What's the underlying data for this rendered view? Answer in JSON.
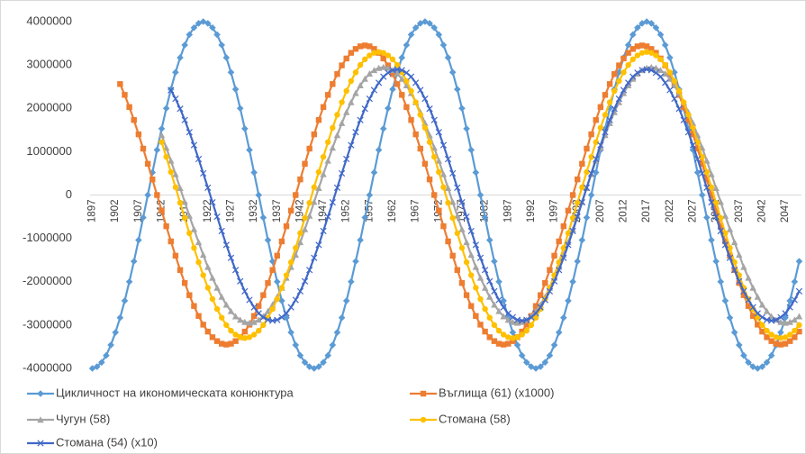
{
  "chart_data": {
    "type": "line",
    "categories": [
      "1897",
      null,
      null,
      null,
      null,
      "1902",
      null,
      null,
      null,
      null,
      "1907",
      null,
      null,
      null,
      null,
      "1912",
      null,
      null,
      null,
      null,
      "1917",
      null,
      null,
      null,
      null,
      "1922",
      null,
      null,
      null,
      null,
      "1927",
      null,
      null,
      null,
      null,
      "1932",
      null,
      null,
      null,
      null,
      "1937",
      null,
      null,
      null,
      null,
      "1942",
      null,
      null,
      null,
      null,
      "1947",
      null,
      null,
      null,
      null,
      "1952",
      null,
      null,
      null,
      null,
      "1957",
      null,
      null,
      null,
      null,
      "1962",
      null,
      null,
      null,
      null,
      "1967",
      null,
      null,
      null,
      null,
      "1972",
      null,
      null,
      null,
      null,
      "1977",
      null,
      null,
      null,
      null,
      "1982",
      null,
      null,
      null,
      null,
      "1987",
      null,
      null,
      null,
      null,
      "1992",
      null,
      null,
      null,
      null,
      "1997",
      null,
      null,
      null,
      null,
      "2002",
      null,
      null,
      null,
      null,
      "2007",
      null,
      null,
      null,
      null,
      "2012",
      null,
      null,
      null,
      null,
      "2017",
      null,
      null,
      null,
      null,
      "2022",
      null,
      null,
      null,
      null,
      "2027",
      null,
      null,
      null,
      null,
      "2032",
      null,
      null,
      null,
      null,
      "2037",
      null,
      null,
      null,
      null,
      "2042",
      null,
      null,
      null,
      null,
      "2047",
      null,
      null,
      null
    ],
    "ylim": [
      -4000000,
      4000000
    ],
    "yticks": [
      -4000000,
      -3000000,
      -2000000,
      -1000000,
      0,
      1000000,
      2000000,
      3000000,
      4000000
    ],
    "grid": false,
    "legend": "bottom",
    "series": [
      {
        "name": "Цикличност на икономическата конюнктура",
        "color": "#5b9bd5",
        "marker": "diamond",
        "values": [
          -4000000,
          -3960000,
          -3860000,
          -3700000,
          -3460000,
          -3170000,
          -2830000,
          -2440000,
          -2000000,
          -1530000,
          -1040000,
          -520000,
          0,
          520000,
          1040000,
          1530000,
          2000000,
          2440000,
          2830000,
          3170000,
          3460000,
          3700000,
          3860000,
          3960000,
          4000000,
          3960000,
          3860000,
          3700000,
          3460000,
          3170000,
          2830000,
          2440000,
          2000000,
          1530000,
          1040000,
          520000,
          0,
          -520000,
          -1040000,
          -1530000,
          -2000000,
          -2440000,
          -2830000,
          -3170000,
          -3460000,
          -3700000,
          -3860000,
          -3960000,
          -4000000,
          -3960000,
          -3860000,
          -3700000,
          -3460000,
          -3170000,
          -2830000,
          -2440000,
          -2000000,
          -1530000,
          -1040000,
          -520000,
          0,
          520000,
          1040000,
          1530000,
          2000000,
          2440000,
          2830000,
          3170000,
          3460000,
          3700000,
          3860000,
          3960000,
          4000000,
          3960000,
          3860000,
          3700000,
          3460000,
          3170000,
          2830000,
          2440000,
          2000000,
          1530000,
          1040000,
          520000,
          0,
          -520000,
          -1040000,
          -1530000,
          -2000000,
          -2440000,
          -2830000,
          -3170000,
          -3460000,
          -3700000,
          -3860000,
          -3960000,
          -4000000,
          -3960000,
          -3860000,
          -3700000,
          -3460000,
          -3170000,
          -2830000,
          -2440000,
          -2000000,
          -1530000,
          -1040000,
          -520000,
          0,
          520000,
          1040000,
          1530000,
          2000000,
          2440000,
          2830000,
          3170000,
          3460000,
          3700000,
          3860000,
          3960000,
          4000000,
          3960000,
          3860000,
          3700000,
          3460000,
          3170000,
          2830000,
          2440000,
          2000000,
          1530000,
          1040000,
          520000,
          0,
          -520000,
          -1040000,
          -1530000,
          -2000000,
          -2440000,
          -2830000,
          -3170000,
          -3460000,
          -3700000,
          -3860000,
          -3960000,
          -4000000,
          -3960000,
          -3860000,
          -3700000,
          -3460000,
          -3170000,
          -2830000,
          -2440000,
          -2000000,
          -1530000
        ]
      },
      {
        "name": "Въглища (61) (x1000)",
        "color": "#ed7d31",
        "marker": "square",
        "values": [
          null,
          null,
          null,
          null,
          null,
          null,
          2560000,
          2310000,
          2030000,
          1730000,
          1400000,
          1070000,
          720000,
          360000,
          0,
          -360000,
          -720000,
          -1070000,
          -1400000,
          -1730000,
          -2030000,
          -2310000,
          -2560000,
          -2790000,
          -2990000,
          -3150000,
          -3280000,
          -3370000,
          -3430000,
          -3450000,
          -3430000,
          -3370000,
          -3280000,
          -3150000,
          -2990000,
          -2790000,
          -2560000,
          -2310000,
          -2030000,
          -1730000,
          -1400000,
          -1070000,
          -720000,
          -360000,
          0,
          360000,
          720000,
          1070000,
          1400000,
          1730000,
          2030000,
          2310000,
          2560000,
          2790000,
          2990000,
          3150000,
          3280000,
          3370000,
          3430000,
          3450000,
          3430000,
          3370000,
          3280000,
          3150000,
          2990000,
          2790000,
          2560000,
          2310000,
          2030000,
          1730000,
          1400000,
          1070000,
          720000,
          360000,
          0,
          -360000,
          -720000,
          -1070000,
          -1400000,
          -1730000,
          -2030000,
          -2310000,
          -2560000,
          -2790000,
          -2990000,
          -3150000,
          -3280000,
          -3370000,
          -3430000,
          -3450000,
          -3430000,
          -3370000,
          -3280000,
          -3150000,
          -2990000,
          -2790000,
          -2560000,
          -2310000,
          -2030000,
          -1730000,
          -1400000,
          -1070000,
          -720000,
          -360000,
          0,
          360000,
          720000,
          1070000,
          1400000,
          1730000,
          2030000,
          2310000,
          2560000,
          2790000,
          2990000,
          3150000,
          3280000,
          3370000,
          3430000,
          3450000,
          3430000,
          3370000,
          3280000,
          3150000,
          2990000,
          2790000,
          2560000,
          2310000,
          2030000,
          1730000,
          1400000,
          1070000,
          720000,
          360000,
          0,
          -360000,
          -720000,
          -1070000,
          -1400000,
          -1730000,
          -2030000,
          -2310000,
          -2560000,
          -2790000,
          -2990000,
          -3150000,
          -3280000,
          -3370000,
          -3430000,
          -3450000,
          -3430000,
          -3370000,
          -3280000,
          -3150000
        ]
      },
      {
        "name": "Чугун (58)",
        "color": "#a5a5a5",
        "marker": "triangle",
        "values": [
          null,
          null,
          null,
          null,
          null,
          null,
          null,
          null,
          null,
          null,
          null,
          null,
          null,
          null,
          null,
          1380000,
          1090000,
          790000,
          480000,
          160000,
          -160000,
          -480000,
          -790000,
          -1090000,
          -1380000,
          -1660000,
          -1910000,
          -2140000,
          -2350000,
          -2530000,
          -2680000,
          -2800000,
          -2880000,
          -2930000,
          -2950000,
          -2930000,
          -2880000,
          -2800000,
          -2680000,
          -2530000,
          -2350000,
          -2140000,
          -1910000,
          -1660000,
          -1380000,
          -1090000,
          -790000,
          -480000,
          -160000,
          160000,
          480000,
          790000,
          1090000,
          1380000,
          1660000,
          1910000,
          2140000,
          2350000,
          2530000,
          2680000,
          2800000,
          2880000,
          2930000,
          2950000,
          2930000,
          2880000,
          2800000,
          2680000,
          2530000,
          2350000,
          2140000,
          1910000,
          1660000,
          1380000,
          1090000,
          790000,
          480000,
          160000,
          -160000,
          -480000,
          -790000,
          -1090000,
          -1380000,
          -1660000,
          -1910000,
          -2140000,
          -2350000,
          -2530000,
          -2680000,
          -2800000,
          -2880000,
          -2930000,
          -2950000,
          -2930000,
          -2880000,
          -2800000,
          -2680000,
          -2530000,
          -2350000,
          -2140000,
          -1910000,
          -1660000,
          -1380000,
          -1090000,
          -790000,
          -480000,
          -160000,
          160000,
          480000,
          790000,
          1090000,
          1380000,
          1660000,
          1910000,
          2140000,
          2350000,
          2530000,
          2680000,
          2800000,
          2880000,
          2930000,
          2950000,
          2930000,
          2880000,
          2800000,
          2680000,
          2530000,
          2350000,
          2140000,
          1910000,
          1660000,
          1380000,
          1090000,
          790000,
          480000,
          160000,
          -160000,
          -480000,
          -790000,
          -1090000,
          -1380000,
          -1660000,
          -1910000,
          -2140000,
          -2350000,
          -2530000,
          -2680000,
          -2800000,
          -2880000,
          -2930000,
          -2950000,
          -2930000,
          -2880000,
          -2800000
        ]
      },
      {
        "name": "Стомана (58)",
        "color": "#ffc000",
        "marker": "circle",
        "values": [
          null,
          null,
          null,
          null,
          null,
          null,
          null,
          null,
          null,
          null,
          null,
          null,
          null,
          null,
          null,
          1220000,
          880000,
          530000,
          180000,
          -180000,
          -530000,
          -880000,
          -1220000,
          -1550000,
          -1850000,
          -2140000,
          -2400000,
          -2630000,
          -2830000,
          -3000000,
          -3130000,
          -3220000,
          -3280000,
          -3300000,
          -3280000,
          -3220000,
          -3130000,
          -3000000,
          -2830000,
          -2630000,
          -2400000,
          -2140000,
          -1850000,
          -1550000,
          -1220000,
          -880000,
          -530000,
          -180000,
          180000,
          530000,
          880000,
          1220000,
          1550000,
          1850000,
          2140000,
          2400000,
          2630000,
          2830000,
          3000000,
          3130000,
          3220000,
          3280000,
          3300000,
          3280000,
          3220000,
          3130000,
          3000000,
          2830000,
          2630000,
          2400000,
          2140000,
          1850000,
          1550000,
          1220000,
          880000,
          530000,
          180000,
          -180000,
          -530000,
          -880000,
          -1220000,
          -1550000,
          -1850000,
          -2140000,
          -2400000,
          -2630000,
          -2830000,
          -3000000,
          -3130000,
          -3220000,
          -3280000,
          -3300000,
          -3280000,
          -3220000,
          -3130000,
          -3000000,
          -2830000,
          -2630000,
          -2400000,
          -2140000,
          -1850000,
          -1550000,
          -1220000,
          -880000,
          -530000,
          -180000,
          180000,
          530000,
          880000,
          1220000,
          1550000,
          1850000,
          2140000,
          2400000,
          2630000,
          2830000,
          3000000,
          3130000,
          3220000,
          3280000,
          3300000,
          3280000,
          3220000,
          3130000,
          3000000,
          2830000,
          2630000,
          2400000,
          2140000,
          1850000,
          1550000,
          1220000,
          880000,
          530000,
          180000,
          -180000,
          -530000,
          -880000,
          -1220000,
          -1550000,
          -1850000,
          -2140000,
          -2400000,
          -2630000,
          -2830000,
          -3000000,
          -3130000,
          -3220000,
          -3280000,
          -3300000,
          -3280000,
          -3220000,
          -3130000,
          -3000000
        ]
      },
      {
        "name": "Стомана (54) (x10)",
        "color": "#4068c8",
        "marker": "x",
        "values": [
          null,
          null,
          null,
          null,
          null,
          null,
          null,
          null,
          null,
          null,
          null,
          null,
          null,
          null,
          null,
          null,
          null,
          2420000,
          2220000,
          1990000,
          1730000,
          1450000,
          1150000,
          830000,
          500000,
          170000,
          -170000,
          -500000,
          -830000,
          -1150000,
          -1450000,
          -1730000,
          -1990000,
          -2220000,
          -2420000,
          -2590000,
          -2730000,
          -2820000,
          -2880000,
          -2900000,
          -2880000,
          -2820000,
          -2730000,
          -2590000,
          -2420000,
          -2220000,
          -1990000,
          -1730000,
          -1450000,
          -1150000,
          -830000,
          -500000,
          -170000,
          170000,
          500000,
          830000,
          1150000,
          1450000,
          1730000,
          1990000,
          2220000,
          2420000,
          2590000,
          2730000,
          2820000,
          2880000,
          2900000,
          2880000,
          2820000,
          2730000,
          2590000,
          2420000,
          2220000,
          1990000,
          1730000,
          1450000,
          1150000,
          830000,
          500000,
          170000,
          -170000,
          -500000,
          -830000,
          -1150000,
          -1450000,
          -1730000,
          -1990000,
          -2220000,
          -2420000,
          -2590000,
          -2730000,
          -2820000,
          -2880000,
          -2900000,
          -2880000,
          -2820000,
          -2730000,
          -2590000,
          -2420000,
          -2220000,
          -1990000,
          -1730000,
          -1450000,
          -1150000,
          -830000,
          -500000,
          -170000,
          170000,
          500000,
          830000,
          1150000,
          1450000,
          1730000,
          1990000,
          2220000,
          2420000,
          2590000,
          2730000,
          2820000,
          2880000,
          2900000,
          2880000,
          2820000,
          2730000,
          2590000,
          2420000,
          2220000,
          1990000,
          1730000,
          1450000,
          1150000,
          830000,
          500000,
          170000,
          -170000,
          -500000,
          -830000,
          -1150000,
          -1450000,
          -1730000,
          -1990000,
          -2220000,
          -2420000,
          -2590000,
          -2730000,
          -2820000,
          -2880000,
          -2900000,
          -2880000,
          -2820000,
          -2730000,
          -2590000,
          -2420000,
          -2220000
        ]
      }
    ]
  }
}
